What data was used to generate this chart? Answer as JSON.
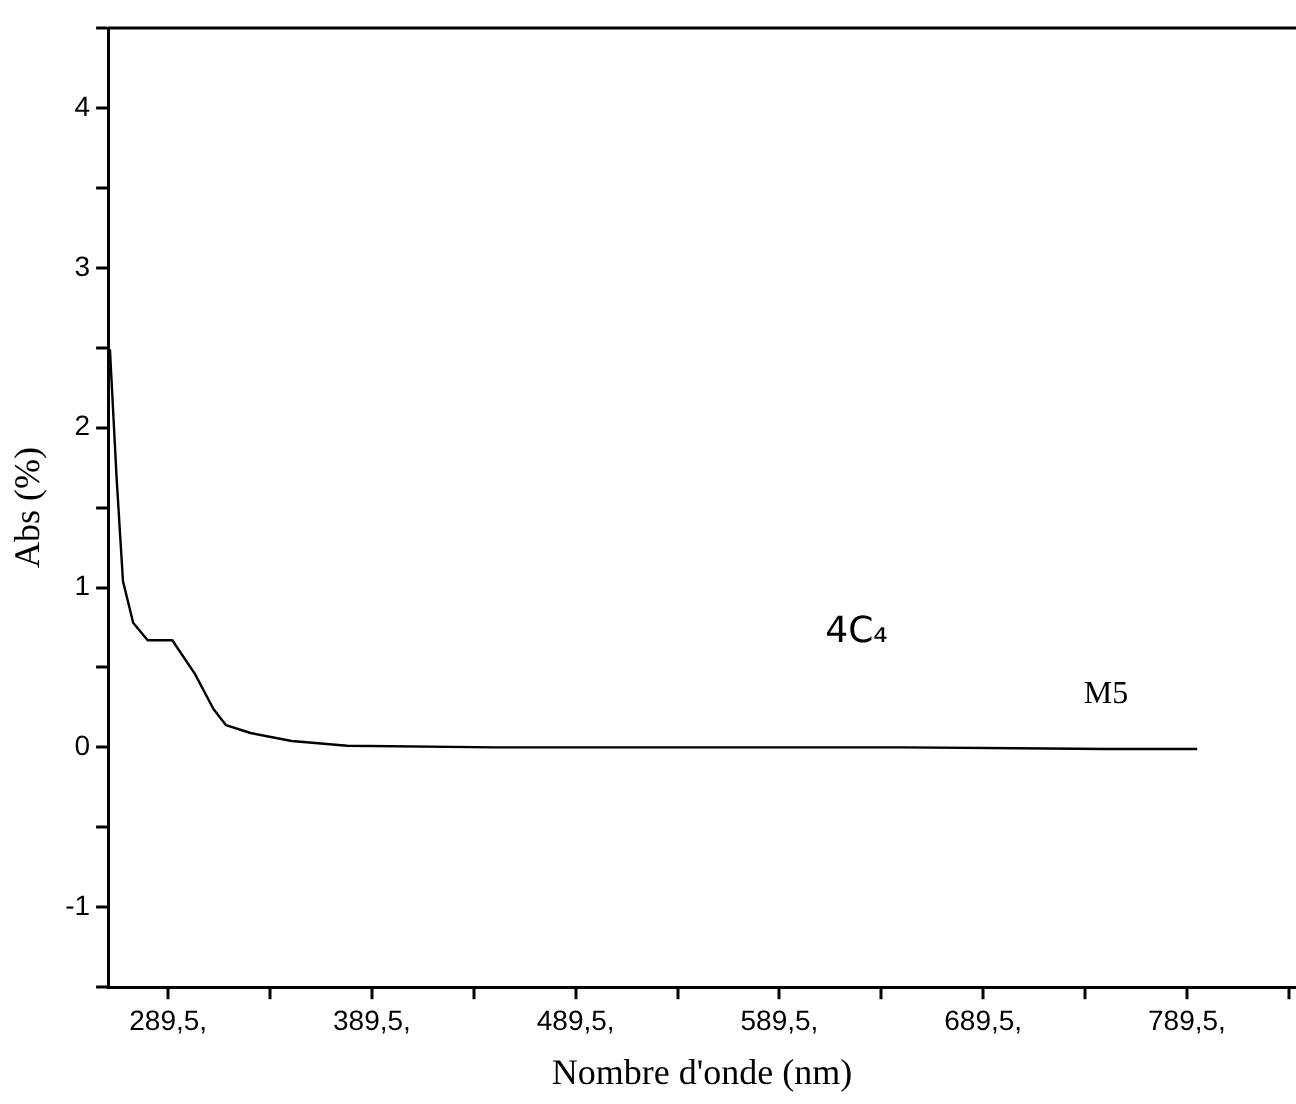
{
  "chart_data": {
    "type": "line",
    "xlabel": "Nombre d'onde (nm)",
    "ylabel": "Abs (%)",
    "x": [
      260.9,
      264.2,
      267.3,
      272.3,
      279.4,
      291.5,
      302.6,
      311.7,
      317.8,
      329.9,
      350.1,
      377.4,
      450,
      550,
      650,
      750,
      794.5
    ],
    "series": [
      {
        "color": "#000000",
        "values": [
          2.49,
          1.68,
          1.04,
          0.78,
          0.67,
          0.67,
          0.46,
          0.24,
          0.14,
          0.09,
          0.04,
          0.01,
          0,
          0,
          0,
          -0.01,
          -0.01
        ]
      }
    ],
    "xlim": [
      260,
      843
    ],
    "xticks": [
      {
        "value": 289.5,
        "label": "289,5,"
      },
      {
        "value": 339.5,
        "label": null
      },
      {
        "value": 389.5,
        "label": "389,5,"
      },
      {
        "value": 439.5,
        "label": null
      },
      {
        "value": 489.5,
        "label": "489,5,"
      },
      {
        "value": 539.5,
        "label": null
      },
      {
        "value": 589.5,
        "label": "589,5,"
      },
      {
        "value": 639.5,
        "label": null
      },
      {
        "value": 689.5,
        "label": "689,5,"
      },
      {
        "value": 739.5,
        "label": null
      },
      {
        "value": 789.5,
        "label": "789,5,"
      },
      {
        "value": 839.5,
        "label": null
      }
    ],
    "ylim": [
      -1.5,
      4.5
    ],
    "yticks": [
      {
        "value": -1.5,
        "label": null
      },
      -1,
      {
        "value": -0.5,
        "label": null
      },
      0,
      {
        "value": 0.5,
        "label": null
      },
      1,
      {
        "value": 1.5,
        "label": null
      },
      2,
      {
        "value": 2.5,
        "label": null
      },
      3,
      {
        "value": 3.5,
        "label": null
      },
      4,
      {
        "value": 4.5,
        "label": null
      }
    ],
    "annotations": [
      "4C₄",
      "M5"
    ],
    "grid": false,
    "legend": false,
    "marker": "none",
    "line_style": "solid"
  }
}
